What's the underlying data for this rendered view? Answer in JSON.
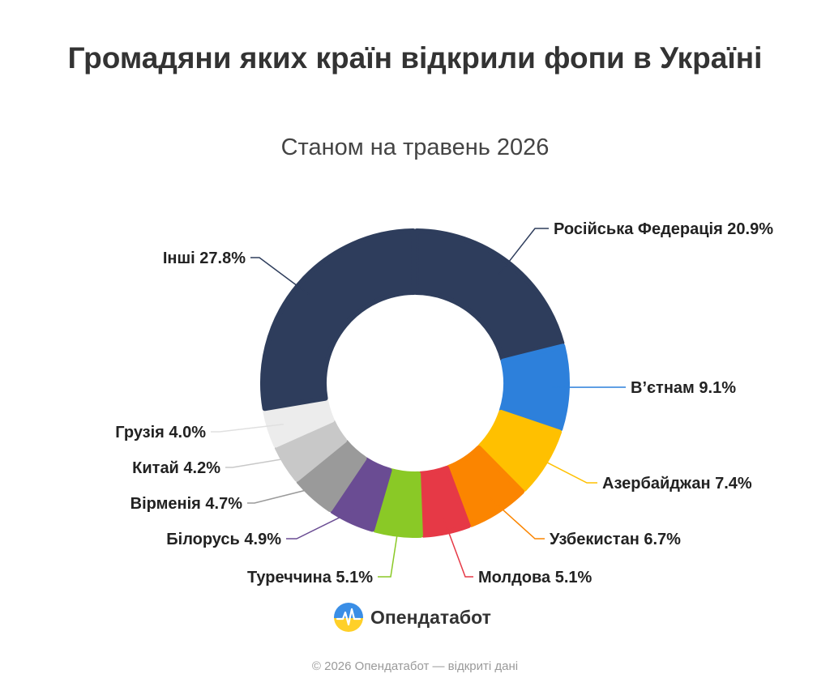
{
  "chart_data": {
    "type": "pie",
    "title": "Громадяни яких країн відкрили фопи в Україні",
    "subtitle": "Станом на травень 2026",
    "slices": [
      {
        "name": "Російська Федерація",
        "value": 20.9,
        "label": "Російська Федерація 20.9%",
        "color": "#2e3d5c"
      },
      {
        "name": "В’єтнам",
        "value": 9.1,
        "label": "В’єтнам 9.1%",
        "color": "#2d80db"
      },
      {
        "name": "Азербайджан",
        "value": 7.4,
        "label": "Азербайджан 7.4%",
        "color": "#ffc000"
      },
      {
        "name": "Узбекистан",
        "value": 6.7,
        "label": "Узбекистан 6.7%",
        "color": "#fb8500"
      },
      {
        "name": "Молдова",
        "value": 5.1,
        "label": "Молдова 5.1%",
        "color": "#e63946"
      },
      {
        "name": "Туреччина",
        "value": 5.1,
        "label": "Туреччина 5.1%",
        "color": "#8ac926"
      },
      {
        "name": "Білорусь",
        "value": 4.9,
        "label": "Білорусь 4.9%",
        "color": "#6a4c93"
      },
      {
        "name": "Вірменія",
        "value": 4.7,
        "label": "Вірменія 4.7%",
        "color": "#9a9a9a"
      },
      {
        "name": "Китай",
        "value": 4.2,
        "label": "Китай 4.2%",
        "color": "#c8c8c8"
      },
      {
        "name": "Грузія",
        "value": 4.0,
        "label": "Грузія 4.0%",
        "color": "#ececec"
      },
      {
        "name": "Інші",
        "value": 27.8,
        "label": "Інші 27.8%",
        "color": "#2e3d5c"
      }
    ]
  },
  "logo": {
    "text": "Опендатабот",
    "icon": "opendatabot-logo-icon"
  },
  "footer": {
    "text": "© 2026 Опендатабот — відкриті дані"
  }
}
